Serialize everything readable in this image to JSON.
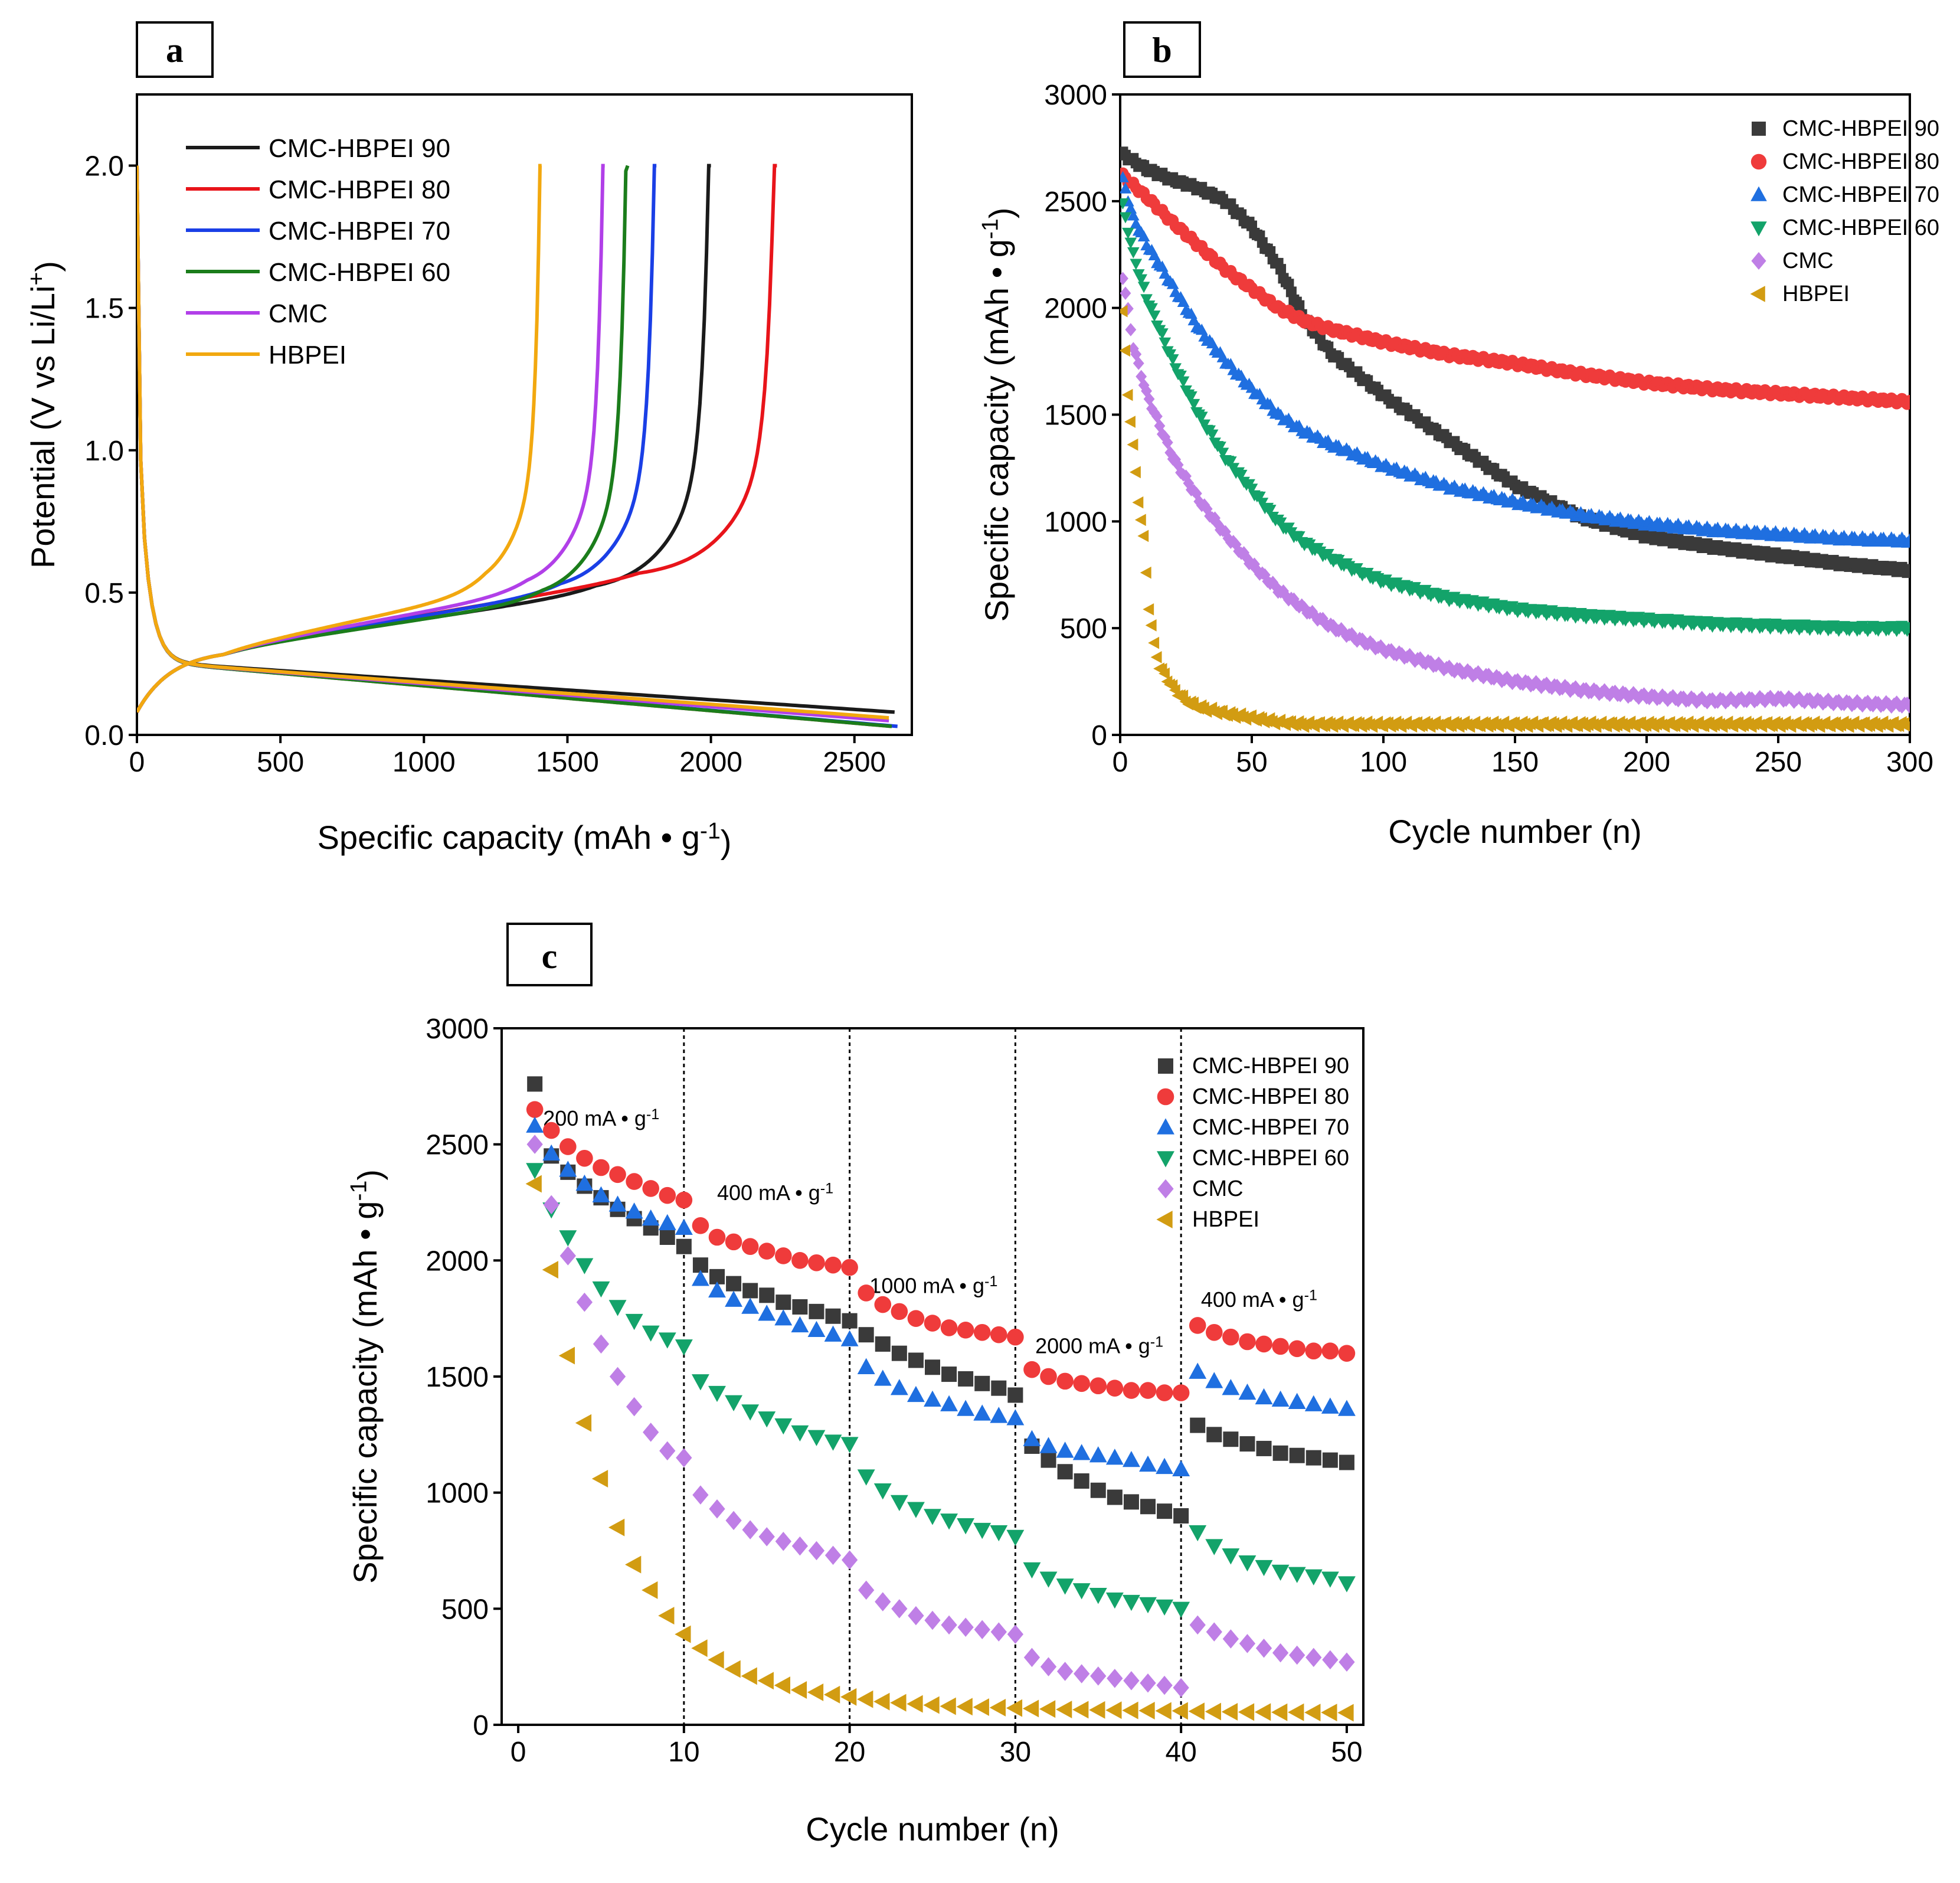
{
  "colors": {
    "CMC-HBPEI 90": "#3a3a3a",
    "CMC-HBPEI 80": "#ef3b3b",
    "CMC-HBPEI 70": "#1f6fe0",
    "CMC-HBPEI 60": "#13a36a",
    "CMC": "#bf7fe6",
    "HBPEI": "#d29c12",
    "a_line": {
      "CMC-HBPEI 90": "#1a1a1a",
      "CMC-HBPEI 80": "#e8141a",
      "CMC-HBPEI 70": "#1a3fe6",
      "CMC-HBPEI 60": "#1b7d1b",
      "CMC": "#b13fe8",
      "HBPEI": "#f2a80f"
    }
  },
  "chart_data": [
    {
      "id": "a",
      "panel_label": "a",
      "type": "line",
      "xlabel": "Specific capacity (mAh • g",
      "xlabel_sup": "-1",
      "xlabel_end": ")",
      "ylabel": "Potential (V vs Li/Li",
      "ylabel_sup": "+",
      "ylabel_end": ")",
      "xlim": [
        0,
        2700
      ],
      "ylim": [
        0,
        2.25
      ],
      "xticks": [
        0,
        500,
        1000,
        1500,
        2000,
        2500
      ],
      "yticks": [
        0.0,
        0.5,
        1.0,
        1.5,
        2.0
      ],
      "ytick_labels": [
        "0.0",
        "0.5",
        "1.0",
        "1.5",
        "2.0"
      ],
      "legend_position": "top-left",
      "series": [
        {
          "name": "CMC-HBPEI 90",
          "discharge_end": [
            2640,
            0.08
          ],
          "charge_end": 2000,
          "plateau": 0.5
        },
        {
          "name": "CMC-HBPEI 80",
          "discharge_end": [
            2630,
            0.03
          ],
          "charge_end": 2230,
          "plateau": 0.55
        },
        {
          "name": "CMC-HBPEI 70",
          "discharge_end": [
            2650,
            0.03
          ],
          "charge_end": 1810,
          "plateau": 0.5
        },
        {
          "name": "CMC-HBPEI 60",
          "discharge_end": [
            2630,
            0.03
          ],
          "charge_end": 1710,
          "plateau": 0.47
        },
        {
          "name": "CMC",
          "discharge_end": [
            2620,
            0.05
          ],
          "charge_end": 1630,
          "plateau": 0.5
        },
        {
          "name": "HBPEI",
          "discharge_end": [
            2620,
            0.06
          ],
          "charge_end": 1410,
          "plateau": 0.5
        }
      ]
    },
    {
      "id": "b",
      "panel_label": "b",
      "type": "scatter",
      "xlabel": "Cycle number (n)",
      "ylabel": "Specific capacity (mAh • g",
      "ylabel_sup": "-1",
      "ylabel_end": ")",
      "xlim": [
        0,
        300
      ],
      "ylim": [
        0,
        3000
      ],
      "xticks": [
        0,
        50,
        100,
        150,
        200,
        250,
        300
      ],
      "yticks": [
        0,
        500,
        1000,
        1500,
        2000,
        2500,
        3000
      ],
      "legend_position": "top-right",
      "series": [
        {
          "name": "CMC-HBPEI 90",
          "marker": "square",
          "x": [
            1,
            10,
            20,
            30,
            40,
            50,
            60,
            70,
            80,
            90,
            100,
            125,
            150,
            175,
            200,
            225,
            250,
            275,
            300
          ],
          "values": [
            2720,
            2650,
            2600,
            2560,
            2500,
            2380,
            2200,
            1950,
            1790,
            1690,
            1590,
            1380,
            1170,
            1020,
            930,
            880,
            840,
            800,
            770
          ]
        },
        {
          "name": "CMC-HBPEI 80",
          "marker": "circle",
          "x": [
            1,
            10,
            20,
            30,
            40,
            50,
            60,
            70,
            80,
            90,
            100,
            125,
            150,
            175,
            200,
            225,
            250,
            275,
            300
          ],
          "values": [
            2620,
            2520,
            2400,
            2290,
            2180,
            2090,
            2000,
            1940,
            1900,
            1870,
            1840,
            1780,
            1740,
            1690,
            1650,
            1620,
            1600,
            1580,
            1560
          ]
        },
        {
          "name": "CMC-HBPEI 70",
          "marker": "triangle-up",
          "x": [
            1,
            5,
            10,
            20,
            30,
            40,
            50,
            60,
            70,
            80,
            90,
            100,
            125,
            150,
            175,
            200,
            225,
            250,
            275,
            300
          ],
          "values": [
            2600,
            2420,
            2300,
            2100,
            1900,
            1750,
            1620,
            1500,
            1420,
            1360,
            1310,
            1260,
            1160,
            1090,
            1030,
            990,
            960,
            940,
            920,
            910
          ]
        },
        {
          "name": "CMC-HBPEI 60",
          "marker": "triangle-down",
          "x": [
            1,
            5,
            10,
            20,
            30,
            40,
            50,
            60,
            70,
            80,
            90,
            100,
            125,
            150,
            175,
            200,
            225,
            250,
            275,
            300
          ],
          "values": [
            2480,
            2250,
            2050,
            1750,
            1500,
            1300,
            1150,
            1000,
            900,
            830,
            770,
            720,
            640,
            590,
            560,
            540,
            520,
            510,
            500,
            500
          ]
        },
        {
          "name": "CMC",
          "marker": "diamond",
          "x": [
            1,
            5,
            10,
            20,
            30,
            40,
            50,
            60,
            70,
            80,
            90,
            100,
            125,
            150,
            175,
            200,
            225,
            250,
            275,
            300
          ],
          "values": [
            2150,
            1820,
            1600,
            1300,
            1100,
            940,
            800,
            680,
            590,
            510,
            450,
            400,
            310,
            250,
            210,
            180,
            160,
            170,
            150,
            140
          ]
        },
        {
          "name": "HBPEI",
          "marker": "triangle-left",
          "x": [
            1,
            3,
            5,
            7,
            9,
            11,
            13,
            15,
            20,
            25,
            30,
            40,
            50,
            60,
            70,
            80,
            100,
            150,
            200,
            250,
            300
          ],
          "values": [
            1980,
            1600,
            1350,
            1100,
            920,
            600,
            420,
            320,
            220,
            160,
            130,
            100,
            80,
            60,
            50,
            50,
            50,
            50,
            50,
            50,
            50
          ]
        }
      ]
    },
    {
      "id": "c",
      "panel_label": "c",
      "type": "scatter",
      "xlabel": "Cycle number (n)",
      "ylabel": "Specific capacity (mAh • g",
      "ylabel_sup": "-1",
      "ylabel_end": ")",
      "xlim": [
        -1,
        51
      ],
      "ylim": [
        0,
        3000
      ],
      "xticks": [
        0,
        10,
        20,
        30,
        40,
        50
      ],
      "yticks": [
        0,
        500,
        1000,
        1500,
        2000,
        2500,
        3000
      ],
      "dividers": [
        10,
        20,
        30,
        40
      ],
      "legend_position": "top-right",
      "rate_labels": [
        {
          "text": "200 mA • g",
          "sup": "-1",
          "x": 1.5,
          "y": 2580
        },
        {
          "text": "400 mA • g",
          "sup": "-1",
          "x": 12,
          "y": 2260
        },
        {
          "text": "1000 mA • g",
          "sup": "-1",
          "x": 21.2,
          "y": 1860
        },
        {
          "text": "2000 mA • g",
          "sup": "-1",
          "x": 31.2,
          "y": 1600
        },
        {
          "text": "400 mA • g",
          "sup": "-1",
          "x": 41.2,
          "y": 1800
        }
      ],
      "cycles": [
        1,
        2,
        3,
        4,
        5,
        6,
        7,
        8,
        9,
        10,
        11,
        12,
        13,
        14,
        15,
        16,
        17,
        18,
        19,
        20,
        21,
        22,
        23,
        24,
        25,
        26,
        27,
        28,
        29,
        30,
        31,
        32,
        33,
        34,
        35,
        36,
        37,
        38,
        39,
        40,
        41,
        42,
        43,
        44,
        45,
        46,
        47,
        48,
        49,
        50
      ],
      "series": [
        {
          "name": "CMC-HBPEI 90",
          "marker": "square",
          "values": [
            2760,
            2450,
            2380,
            2320,
            2270,
            2220,
            2180,
            2140,
            2100,
            2060,
            1980,
            1930,
            1900,
            1870,
            1850,
            1820,
            1800,
            1780,
            1760,
            1740,
            1680,
            1640,
            1600,
            1570,
            1540,
            1510,
            1490,
            1470,
            1450,
            1420,
            1200,
            1140,
            1090,
            1050,
            1010,
            980,
            960,
            940,
            920,
            900,
            1290,
            1250,
            1230,
            1210,
            1190,
            1170,
            1160,
            1150,
            1140,
            1130
          ]
        },
        {
          "name": "CMC-HBPEI 80",
          "marker": "circle",
          "values": [
            2650,
            2560,
            2490,
            2440,
            2400,
            2370,
            2340,
            2310,
            2280,
            2260,
            2150,
            2100,
            2080,
            2060,
            2040,
            2020,
            2000,
            1990,
            1980,
            1970,
            1860,
            1810,
            1780,
            1750,
            1730,
            1710,
            1700,
            1690,
            1680,
            1670,
            1530,
            1500,
            1480,
            1470,
            1460,
            1450,
            1440,
            1440,
            1430,
            1430,
            1720,
            1690,
            1670,
            1650,
            1640,
            1630,
            1620,
            1610,
            1610,
            1600
          ]
        },
        {
          "name": "CMC-HBPEI 70",
          "marker": "triangle-up",
          "values": [
            2580,
            2460,
            2390,
            2330,
            2280,
            2240,
            2210,
            2180,
            2160,
            2140,
            1920,
            1870,
            1830,
            1800,
            1770,
            1750,
            1720,
            1700,
            1680,
            1660,
            1540,
            1490,
            1450,
            1420,
            1400,
            1380,
            1360,
            1340,
            1330,
            1320,
            1230,
            1200,
            1180,
            1170,
            1160,
            1150,
            1140,
            1120,
            1110,
            1100,
            1520,
            1480,
            1450,
            1430,
            1410,
            1400,
            1390,
            1380,
            1370,
            1360
          ]
        },
        {
          "name": "CMC-HBPEI 60",
          "marker": "triangle-down",
          "values": [
            2390,
            2220,
            2100,
            1980,
            1880,
            1800,
            1740,
            1690,
            1660,
            1630,
            1480,
            1430,
            1390,
            1350,
            1320,
            1290,
            1260,
            1240,
            1220,
            1210,
            1070,
            1010,
            960,
            930,
            900,
            880,
            860,
            840,
            830,
            810,
            670,
            630,
            600,
            580,
            560,
            540,
            530,
            520,
            510,
            500,
            830,
            770,
            730,
            700,
            680,
            660,
            650,
            640,
            630,
            610
          ]
        },
        {
          "name": "CMC",
          "marker": "diamond",
          "values": [
            2500,
            2240,
            2020,
            1820,
            1640,
            1500,
            1370,
            1260,
            1180,
            1150,
            990,
            930,
            880,
            840,
            810,
            790,
            770,
            750,
            730,
            710,
            580,
            530,
            500,
            470,
            450,
            430,
            420,
            410,
            400,
            390,
            290,
            250,
            230,
            220,
            210,
            200,
            190,
            180,
            170,
            160,
            430,
            400,
            370,
            350,
            330,
            310,
            300,
            290,
            280,
            270
          ]
        },
        {
          "name": "HBPEI",
          "marker": "triangle-left",
          "values": [
            2330,
            1960,
            1590,
            1300,
            1060,
            850,
            690,
            580,
            470,
            390,
            330,
            280,
            240,
            210,
            190,
            170,
            150,
            140,
            130,
            120,
            110,
            100,
            95,
            90,
            85,
            80,
            78,
            76,
            74,
            72,
            70,
            68,
            66,
            65,
            64,
            63,
            62,
            61,
            60,
            60,
            58,
            57,
            56,
            55,
            55,
            54,
            54,
            53,
            53,
            52
          ]
        }
      ]
    }
  ]
}
